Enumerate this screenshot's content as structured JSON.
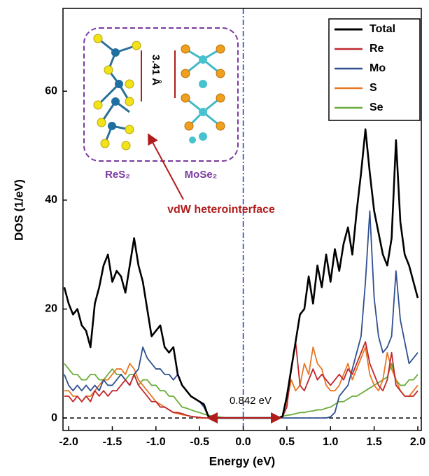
{
  "chart_data": {
    "type": "line",
    "xlabel": "Energy (eV)",
    "ylabel": "DOS (1/eV)",
    "xlim": [
      -2.065,
      2.04
    ],
    "ylim": [
      -2.3,
      75.2
    ],
    "xticks": [
      {
        "value": -2.0,
        "label": "-2.0"
      },
      {
        "value": -1.5,
        "label": "-1.5"
      },
      {
        "value": -1.0,
        "label": "-1.0"
      },
      {
        "value": -0.5,
        "label": "-0.5"
      },
      {
        "value": 0.0,
        "label": "0.0"
      },
      {
        "value": 0.5,
        "label": "0.5"
      },
      {
        "value": 1.0,
        "label": "1.0"
      },
      {
        "value": 1.5,
        "label": "1.5"
      },
      {
        "value": 2.0,
        "label": "2.0"
      }
    ],
    "yticks": [
      0,
      20,
      40,
      60
    ],
    "grid": false,
    "legend": "upper right",
    "x": [
      -2.05,
      -2.0,
      -1.95,
      -1.9,
      -1.85,
      -1.8,
      -1.75,
      -1.7,
      -1.65,
      -1.6,
      -1.55,
      -1.5,
      -1.45,
      -1.4,
      -1.35,
      -1.3,
      -1.25,
      -1.2,
      -1.15,
      -1.1,
      -1.05,
      -1.0,
      -0.95,
      -0.9,
      -0.85,
      -0.8,
      -0.75,
      -0.7,
      -0.65,
      -0.6,
      -0.55,
      -0.5,
      -0.45,
      -0.4,
      -0.35,
      -0.3,
      -0.25,
      -0.2,
      -0.15,
      -0.1,
      -0.05,
      0.0,
      0.05,
      0.1,
      0.15,
      0.2,
      0.25,
      0.3,
      0.35,
      0.4,
      0.45,
      0.5,
      0.55,
      0.6,
      0.65,
      0.7,
      0.75,
      0.8,
      0.85,
      0.9,
      0.95,
      1.0,
      1.05,
      1.1,
      1.15,
      1.2,
      1.25,
      1.3,
      1.35,
      1.4,
      1.45,
      1.5,
      1.55,
      1.6,
      1.65,
      1.7,
      1.75,
      1.8,
      1.85,
      1.9,
      1.95,
      2.0
    ],
    "series": [
      {
        "name": "Total",
        "color": "#000000",
        "values": [
          24,
          21,
          19,
          20,
          17,
          16,
          13,
          21,
          24,
          28,
          30,
          25,
          27,
          26,
          23,
          28,
          33,
          28,
          25,
          20,
          15,
          16,
          17,
          13,
          12,
          13,
          8,
          6,
          5,
          4,
          3.5,
          3,
          2.5,
          0.3,
          0.1,
          0,
          0,
          0,
          0,
          0,
          0,
          0,
          0,
          0,
          0,
          0,
          0,
          0,
          0,
          0,
          0.3,
          4,
          9,
          14,
          19,
          20,
          26,
          21,
          28,
          24,
          30,
          25,
          31,
          27,
          32,
          35,
          30,
          38,
          45,
          53,
          45,
          38,
          34,
          30,
          28,
          33,
          51,
          36,
          30,
          28,
          25,
          22
        ]
      },
      {
        "name": "Re",
        "color": "#c0282d",
        "values": [
          4,
          4,
          3,
          4,
          3,
          4,
          3,
          5,
          4,
          5,
          4,
          5,
          5,
          6,
          7,
          6,
          8,
          6,
          5,
          4,
          3,
          3,
          2,
          2,
          1.5,
          1,
          1,
          0.8,
          0.5,
          0.3,
          0.2,
          0.1,
          0,
          0,
          0,
          0,
          0,
          0,
          0,
          0,
          0,
          0,
          0,
          0,
          0,
          0,
          0,
          0,
          0,
          0,
          0.2,
          2,
          9,
          14,
          6,
          5,
          7,
          9,
          7,
          8,
          7,
          6,
          7,
          8,
          7,
          9,
          8,
          10,
          12,
          14,
          10,
          8,
          6,
          5,
          7,
          12,
          6,
          5,
          4,
          4,
          4,
          5
        ]
      },
      {
        "name": "Mo",
        "color": "#2f4f8f",
        "values": [
          8,
          6,
          5,
          6,
          5,
          6,
          5,
          6,
          5,
          7,
          6,
          6,
          7,
          8,
          7,
          6,
          8,
          9,
          13,
          11,
          10,
          9,
          9,
          8,
          8,
          7,
          8,
          6,
          5,
          4,
          3.5,
          3,
          2,
          0.3,
          0,
          0,
          0,
          0,
          0,
          0,
          0,
          0,
          0,
          0,
          0,
          0,
          0,
          0,
          0,
          0,
          0,
          0,
          0,
          0,
          0,
          0,
          0,
          0,
          0,
          0,
          0,
          0.2,
          1,
          4,
          5,
          6,
          9,
          12,
          15,
          25,
          38,
          22,
          15,
          12,
          13,
          15,
          27,
          18,
          14,
          10,
          11,
          12
        ]
      },
      {
        "name": "S",
        "color": "#e87722",
        "values": [
          5,
          5,
          4,
          4,
          3,
          4,
          4,
          5,
          6,
          7,
          7,
          8,
          9,
          9,
          8,
          10,
          9,
          7,
          6,
          5,
          4,
          3,
          2.5,
          2,
          1.5,
          1,
          0.8,
          0.6,
          0.5,
          0.3,
          0.2,
          0,
          0,
          0,
          0,
          0,
          0,
          0,
          0,
          0,
          0,
          0,
          0,
          0,
          0,
          0,
          0,
          0,
          0,
          0,
          0.3,
          3,
          7,
          5,
          6,
          10,
          8,
          13,
          10,
          9,
          6,
          5,
          5,
          6,
          8,
          10,
          7,
          9,
          11,
          13,
          8,
          6,
          5,
          7,
          12,
          9,
          7,
          5,
          4,
          4,
          5,
          6
        ]
      },
      {
        "name": "Se",
        "color": "#6aac3a",
        "values": [
          10,
          9,
          8,
          8,
          7,
          7,
          8,
          8,
          7,
          7,
          8,
          9,
          8,
          8,
          7,
          8,
          8,
          6,
          7,
          7,
          6,
          6,
          5,
          5,
          4,
          4,
          3,
          2,
          1.8,
          1.5,
          1.2,
          1,
          0.7,
          0.5,
          0.3,
          0.2,
          0.1,
          0,
          0,
          0,
          0,
          0,
          0,
          0,
          0,
          0,
          0,
          0,
          0,
          0,
          0.3,
          0.5,
          0.6,
          0.8,
          1,
          1,
          1.2,
          1.3,
          1.5,
          1.5,
          1.8,
          2,
          2.5,
          3,
          3,
          3.5,
          4,
          4,
          4.5,
          5,
          5.5,
          6,
          6.5,
          7,
          7.5,
          10,
          7,
          6,
          6,
          7,
          7,
          8
        ]
      }
    ],
    "annotations": {
      "gap": "0.842 eV",
      "spacing": "3.41 Å",
      "left_layer": "ReS₂",
      "right_layer": "MoSe₂",
      "interface": "vdW heterointerface"
    }
  }
}
